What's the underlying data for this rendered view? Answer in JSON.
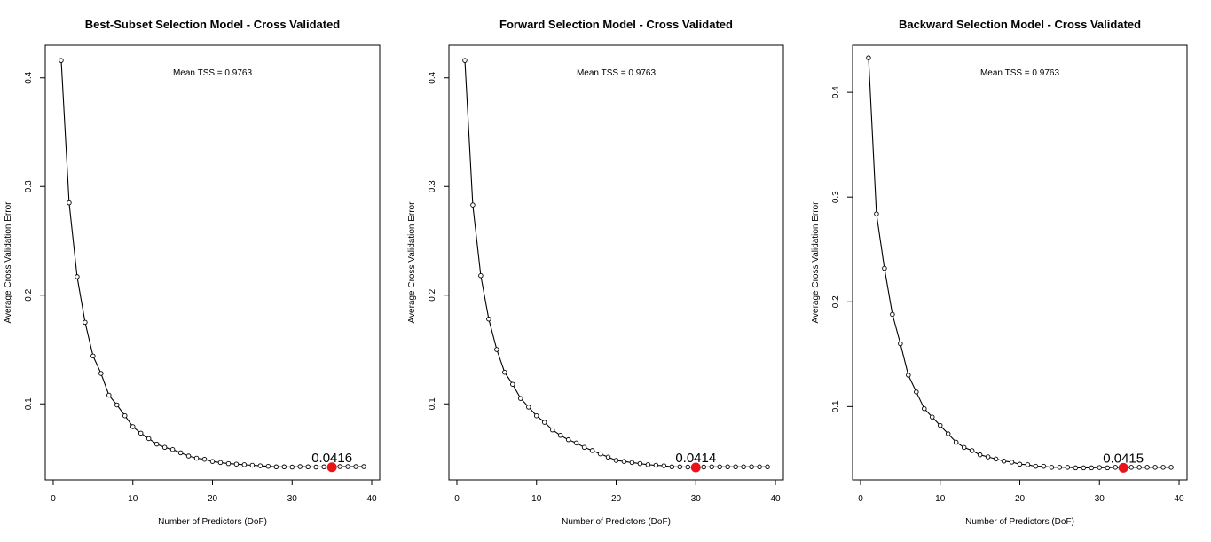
{
  "chart_data": [
    {
      "type": "line",
      "title": "Best-Subset Selection Model - Cross Validated",
      "xlabel": "Number of Predictors (DoF)",
      "ylabel": "Average Cross Validation Error",
      "annotation": "Mean TSS = 0.9763",
      "min_label": "0.0416",
      "min_x": 35,
      "min_y": 0.0416,
      "xlim": [
        0,
        40
      ],
      "ylim": [
        0.03,
        0.43
      ],
      "xticks": [
        0,
        10,
        20,
        30,
        40
      ],
      "yticks": [
        0.1,
        0.2,
        0.3,
        0.4
      ],
      "x": [
        1,
        2,
        3,
        4,
        5,
        6,
        7,
        8,
        9,
        10,
        11,
        12,
        13,
        14,
        15,
        16,
        17,
        18,
        19,
        20,
        21,
        22,
        23,
        24,
        25,
        26,
        27,
        28,
        29,
        30,
        31,
        32,
        33,
        34,
        35,
        36,
        37,
        38,
        39
      ],
      "y": [
        0.416,
        0.285,
        0.217,
        0.175,
        0.144,
        0.128,
        0.108,
        0.099,
        0.089,
        0.079,
        0.073,
        0.068,
        0.063,
        0.06,
        0.058,
        0.055,
        0.052,
        0.05,
        0.049,
        0.047,
        0.046,
        0.045,
        0.0445,
        0.044,
        0.0435,
        0.043,
        0.0425,
        0.042,
        0.042,
        0.0418,
        0.0422,
        0.042,
        0.0418,
        0.042,
        0.0416,
        0.0422,
        0.0422,
        0.0422,
        0.0422
      ]
    },
    {
      "type": "line",
      "title": "Forward Selection Model - Cross Validated",
      "xlabel": "Number of Predictors (DoF)",
      "ylabel": "Average Cross Validation Error",
      "annotation": "Mean TSS = 0.9763",
      "min_label": "0.0414",
      "min_x": 30,
      "min_y": 0.0414,
      "xlim": [
        0,
        40
      ],
      "ylim": [
        0.03,
        0.43
      ],
      "xticks": [
        0,
        10,
        20,
        30,
        40
      ],
      "yticks": [
        0.1,
        0.2,
        0.3,
        0.4
      ],
      "x": [
        1,
        2,
        3,
        4,
        5,
        6,
        7,
        8,
        9,
        10,
        11,
        12,
        13,
        14,
        15,
        16,
        17,
        18,
        19,
        20,
        21,
        22,
        23,
        24,
        25,
        26,
        27,
        28,
        29,
        30,
        31,
        32,
        33,
        34,
        35,
        36,
        37,
        38,
        39
      ],
      "y": [
        0.416,
        0.283,
        0.218,
        0.178,
        0.15,
        0.129,
        0.118,
        0.105,
        0.097,
        0.089,
        0.083,
        0.076,
        0.071,
        0.067,
        0.064,
        0.06,
        0.057,
        0.054,
        0.051,
        0.048,
        0.047,
        0.046,
        0.045,
        0.044,
        0.0435,
        0.043,
        0.042,
        0.042,
        0.0418,
        0.0414,
        0.0418,
        0.042,
        0.042,
        0.042,
        0.042,
        0.042,
        0.042,
        0.042,
        0.042
      ]
    },
    {
      "type": "line",
      "title": "Backward Selection Model - Cross Validated",
      "xlabel": "Number of Predictors (DoF)",
      "ylabel": "Average Cross Validation Error",
      "annotation": "Mean TSS = 0.9763",
      "min_label": "0.0415",
      "min_x": 33,
      "min_y": 0.0415,
      "xlim": [
        0,
        40
      ],
      "ylim": [
        0.03,
        0.445
      ],
      "xticks": [
        0,
        10,
        20,
        30,
        40
      ],
      "yticks": [
        0.1,
        0.2,
        0.3,
        0.4
      ],
      "x": [
        1,
        2,
        3,
        4,
        5,
        6,
        7,
        8,
        9,
        10,
        11,
        12,
        13,
        14,
        15,
        16,
        17,
        18,
        19,
        20,
        21,
        22,
        23,
        24,
        25,
        26,
        27,
        28,
        29,
        30,
        31,
        32,
        33,
        34,
        35,
        36,
        37,
        38,
        39
      ],
      "y": [
        0.433,
        0.284,
        0.232,
        0.188,
        0.16,
        0.13,
        0.114,
        0.098,
        0.09,
        0.082,
        0.074,
        0.066,
        0.061,
        0.058,
        0.054,
        0.052,
        0.05,
        0.048,
        0.047,
        0.045,
        0.0445,
        0.043,
        0.043,
        0.042,
        0.042,
        0.042,
        0.0415,
        0.0415,
        0.0415,
        0.0418,
        0.0415,
        0.042,
        0.0415,
        0.042,
        0.042,
        0.042,
        0.042,
        0.042,
        0.042
      ]
    }
  ]
}
